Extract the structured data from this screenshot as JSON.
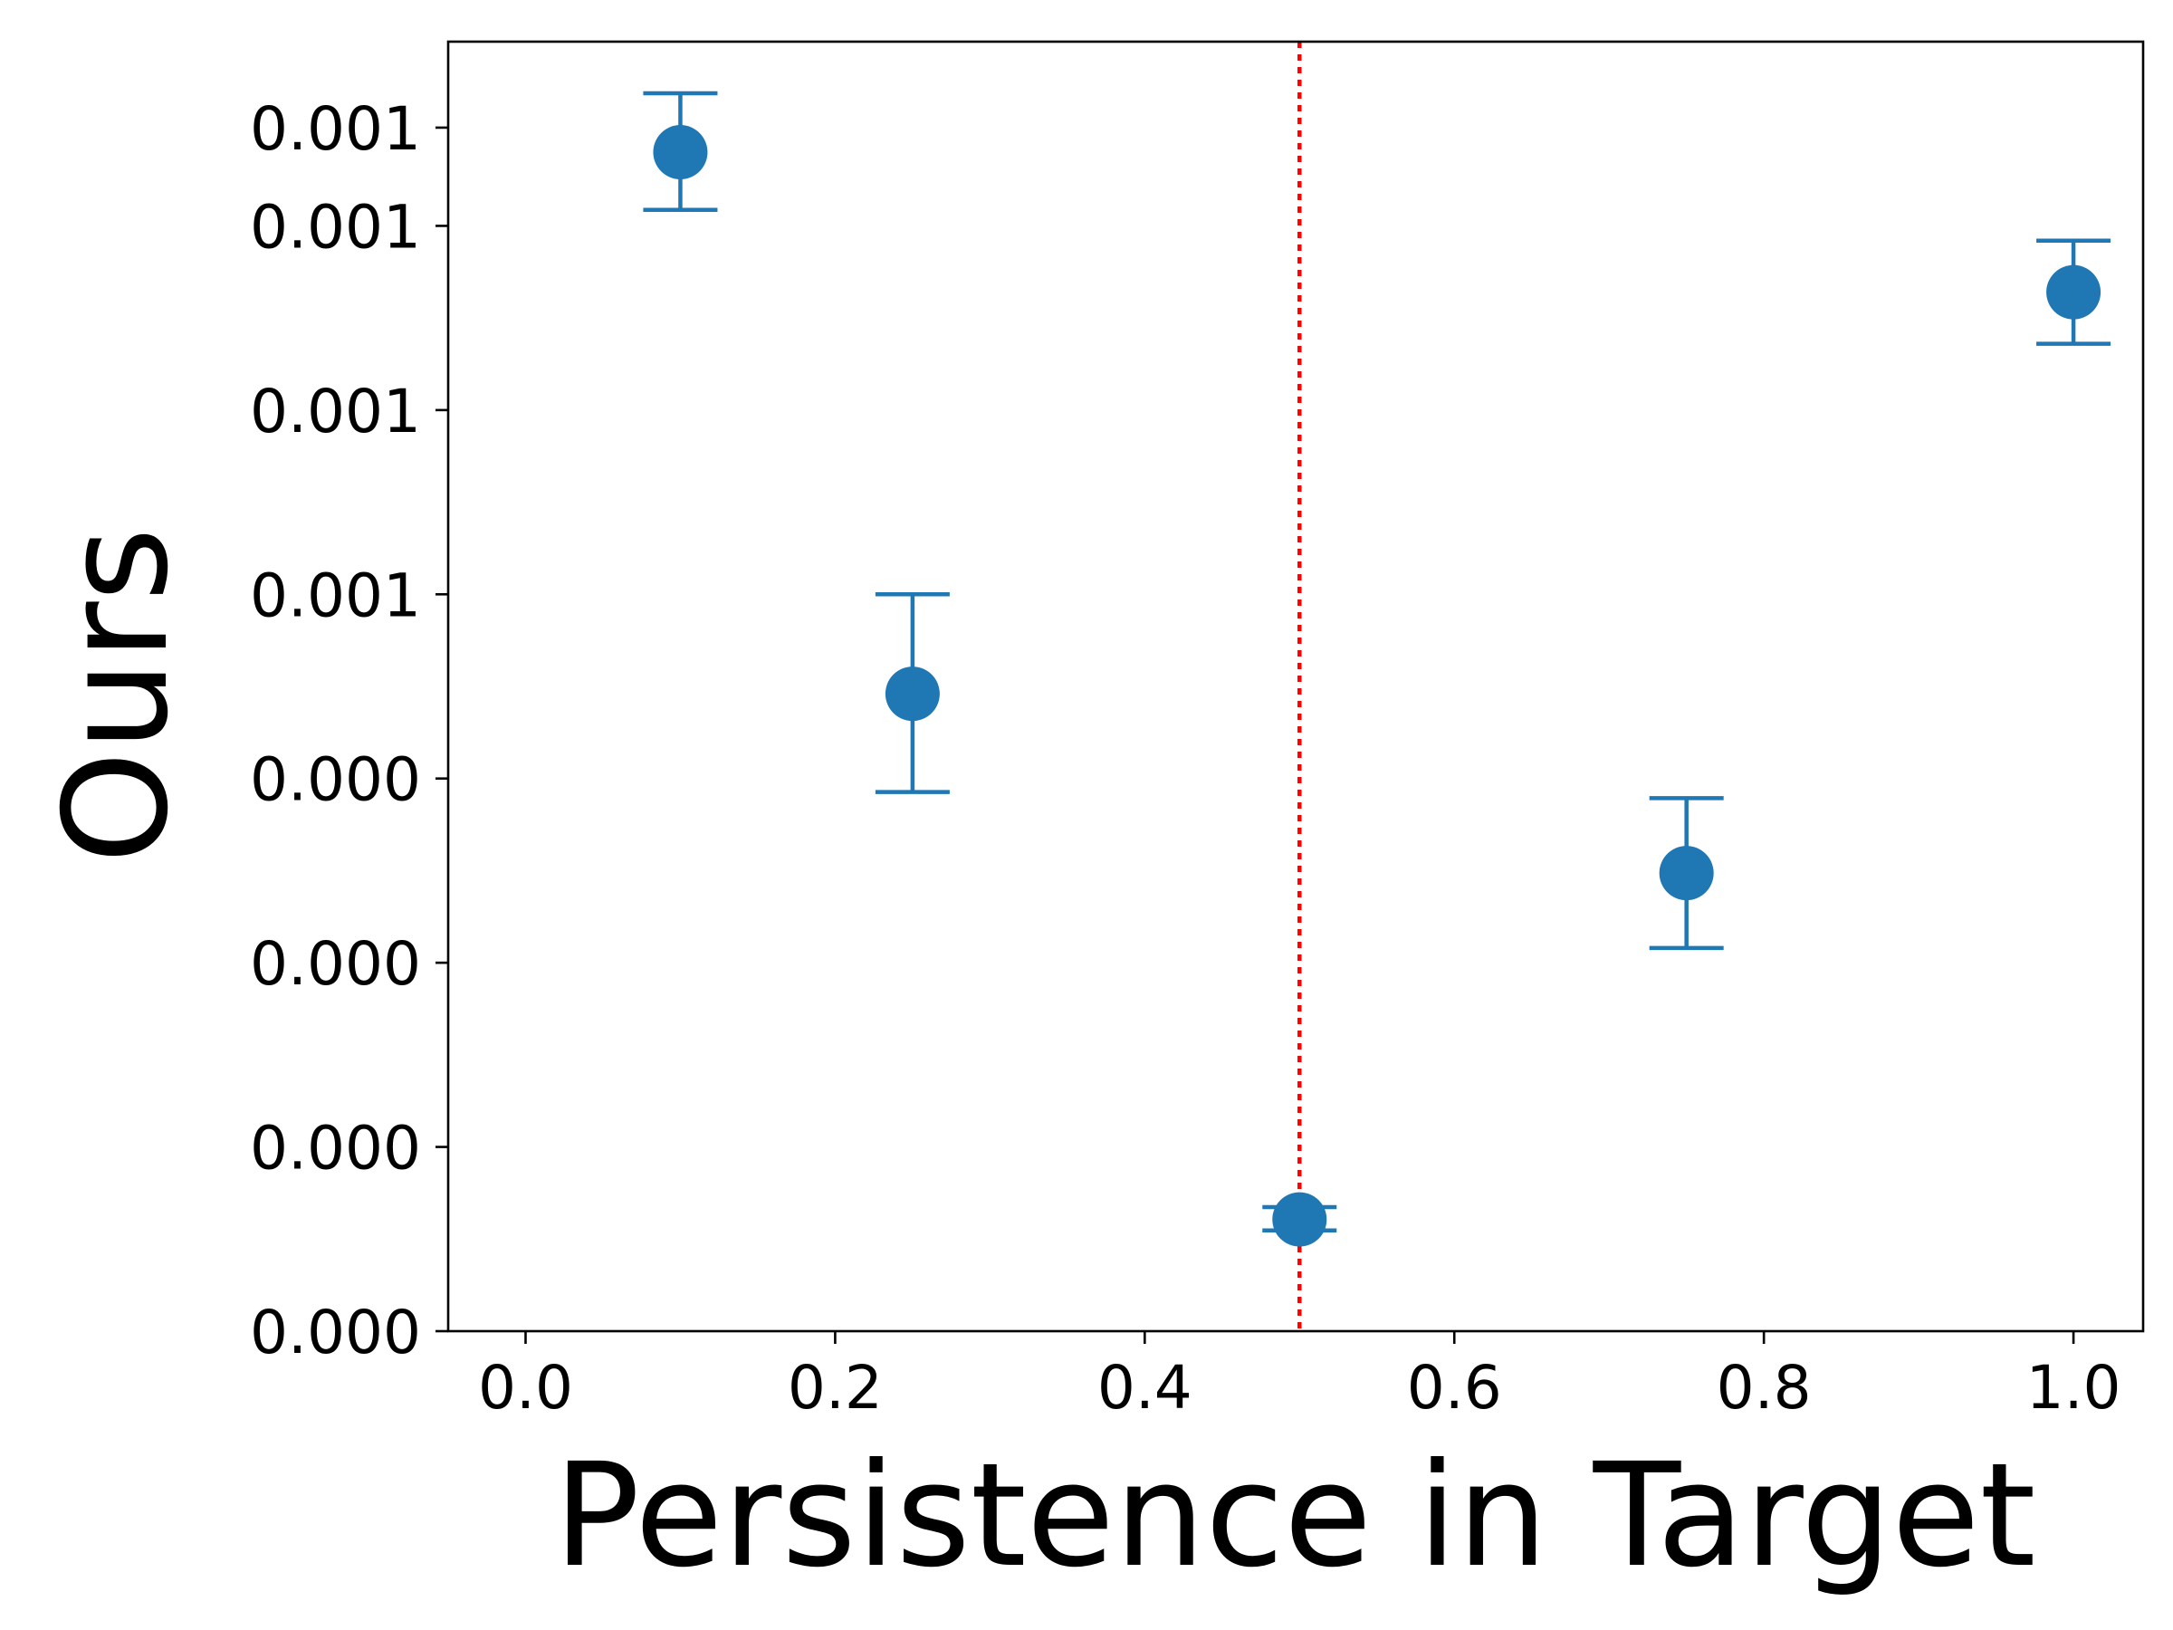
{
  "chart_data": {
    "type": "scatter",
    "title": "",
    "xlabel": "Persistence in Target",
    "ylabel": "Ours",
    "xlim": [
      -0.05,
      1.045
    ],
    "ylim": [
      0.0,
      1.05
    ],
    "x_ticks": [
      {
        "value": 0.0,
        "label": "0.0"
      },
      {
        "value": 0.2,
        "label": "0.2"
      },
      {
        "value": 0.4,
        "label": "0.4"
      },
      {
        "value": 0.6,
        "label": "0.6"
      },
      {
        "value": 0.8,
        "label": "0.8"
      },
      {
        "value": 1.0,
        "label": "1.0"
      }
    ],
    "y_ticks": [
      {
        "value": 0.0,
        "label": "0.000"
      },
      {
        "value": 0.15,
        "label": "0.000"
      },
      {
        "value": 0.3,
        "label": "0.000"
      },
      {
        "value": 0.45,
        "label": "0.000"
      },
      {
        "value": 0.6,
        "label": "0.001"
      },
      {
        "value": 0.75,
        "label": "0.001"
      },
      {
        "value": 0.9,
        "label": "0.001"
      },
      {
        "value": 0.98,
        "label": "0.001"
      }
    ],
    "series": [
      {
        "color": "#1f77b4",
        "points": [
          {
            "x": 0.1,
            "y": 0.96,
            "err_low": 0.047,
            "err_high": 0.048
          },
          {
            "x": 0.25,
            "y": 0.519,
            "err_low": 0.08,
            "err_high": 0.081
          },
          {
            "x": 0.5,
            "y": 0.091,
            "err_low": 0.009,
            "err_high": 0.01
          },
          {
            "x": 0.75,
            "y": 0.373,
            "err_low": 0.061,
            "err_high": 0.061
          },
          {
            "x": 1.0,
            "y": 0.846,
            "err_low": 0.042,
            "err_high": 0.042
          }
        ]
      }
    ],
    "reference_lines": [
      {
        "orientation": "vertical",
        "x": 0.5,
        "color": "#ff0000",
        "style": "dotted"
      }
    ],
    "grid": false,
    "legend": "none"
  }
}
